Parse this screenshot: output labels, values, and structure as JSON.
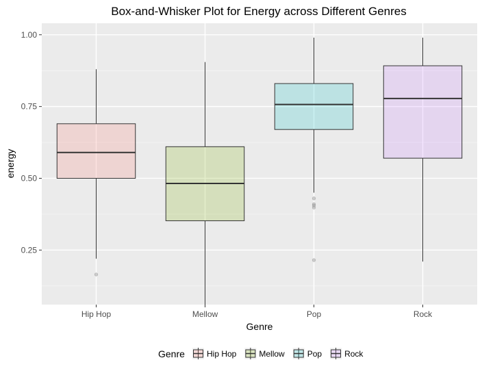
{
  "chart_data": {
    "type": "box",
    "title": "Box-and-Whisker Plot for Energy across Different Genres",
    "xlabel": "Genre",
    "ylabel": "energy",
    "categories": [
      "Hip Hop",
      "Mellow",
      "Pop",
      "Rock"
    ],
    "ylim": [
      0.06,
      1.04
    ],
    "yticks": [
      0.25,
      0.5,
      0.75,
      1.0
    ],
    "ytick_labels": [
      "0.25",
      "0.50",
      "0.75",
      "1.00"
    ],
    "minor_yticks": [
      0.125,
      0.375,
      0.625,
      0.875
    ],
    "grid": true,
    "legend": {
      "title": "Genre",
      "position": "bottom",
      "entries": [
        "Hip Hop",
        "Mellow",
        "Pop",
        "Rock"
      ]
    },
    "series": [
      {
        "category": "Hip Hop",
        "whisker_low": 0.22,
        "q1": 0.5,
        "median": 0.59,
        "q3": 0.69,
        "whisker_high": 0.88,
        "outliers": [
          0.165
        ],
        "fill": "#f8766d"
      },
      {
        "category": "Mellow",
        "whisker_low": 0.055,
        "q1": 0.352,
        "median": 0.482,
        "q3": 0.61,
        "whisker_high": 0.905,
        "outliers": [],
        "fill": "#7cae00"
      },
      {
        "category": "Pop",
        "whisker_low": 0.45,
        "q1": 0.67,
        "median": 0.757,
        "q3": 0.83,
        "whisker_high": 0.99,
        "outliers": [
          0.43,
          0.41,
          0.405,
          0.398,
          0.215
        ],
        "fill": "#00bfc4"
      },
      {
        "category": "Rock",
        "whisker_low": 0.21,
        "q1": 0.57,
        "median": 0.778,
        "q3": 0.892,
        "whisker_high": 0.99,
        "outliers": [],
        "fill": "#c77cff"
      }
    ],
    "colors": {
      "panel_background": "#ebebeb",
      "grid_major": "#ffffff",
      "grid_minor": "#f5f5f5",
      "box_outline": "#333333",
      "outlier": "#999999",
      "axis_text": "#4d4d4d",
      "tick": "#333333"
    }
  }
}
